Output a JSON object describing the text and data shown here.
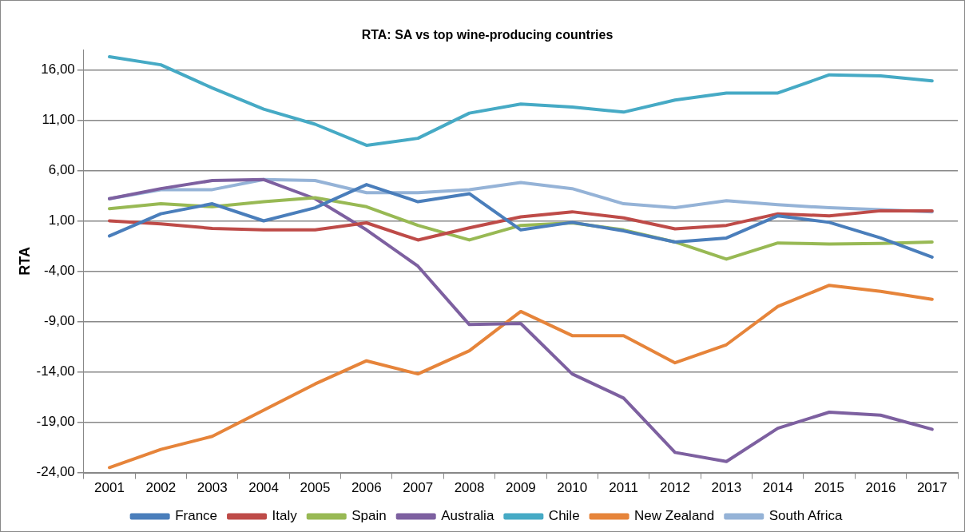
{
  "chart_data": {
    "type": "line",
    "title": "RTA: SA vs top wine-producing countries",
    "ylabel": "RTA",
    "categories": [
      "2001",
      "2002",
      "2003",
      "2004",
      "2005",
      "2006",
      "2007",
      "2008",
      "2009",
      "2010",
      "2011",
      "2012",
      "2013",
      "2014",
      "2015",
      "2016",
      "2017"
    ],
    "series": [
      {
        "name": "France",
        "color": "#4a7ebb",
        "values": [
          -0.5,
          1.7,
          2.7,
          1.0,
          2.3,
          4.6,
          2.9,
          3.7,
          0.1,
          0.85,
          0.0,
          -1.1,
          -0.7,
          1.5,
          0.85,
          -0.7,
          -2.6
        ]
      },
      {
        "name": "Italy",
        "color": "#be4b48",
        "values": [
          1.0,
          0.7,
          0.25,
          0.1,
          0.1,
          0.8,
          -0.9,
          0.3,
          1.4,
          1.9,
          1.3,
          0.2,
          0.55,
          1.7,
          1.5,
          2.0,
          2.0
        ]
      },
      {
        "name": "Spain",
        "color": "#98b954",
        "values": [
          2.2,
          2.7,
          2.4,
          2.9,
          3.3,
          2.4,
          0.55,
          -0.9,
          0.55,
          0.8,
          0.1,
          -1.1,
          -2.8,
          -1.2,
          -1.3,
          -1.25,
          -1.1
        ]
      },
      {
        "name": "Australia",
        "color": "#7d60a0",
        "values": [
          3.2,
          4.2,
          5.0,
          5.1,
          3.2,
          0.1,
          -3.5,
          -9.3,
          -9.2,
          -14.2,
          -16.6,
          -22.0,
          -22.9,
          -19.6,
          -18.0,
          -18.3,
          -19.7
        ]
      },
      {
        "name": "Chile",
        "color": "#46aac5",
        "values": [
          17.3,
          16.5,
          14.2,
          12.1,
          10.6,
          8.5,
          9.2,
          11.7,
          12.6,
          12.3,
          11.8,
          13.0,
          13.7,
          13.7,
          15.5,
          15.4,
          14.9
        ]
      },
      {
        "name": "New Zealand",
        "color": "#e6843a",
        "values": [
          -23.5,
          -21.7,
          -20.4,
          -17.8,
          -15.2,
          -12.9,
          -14.2,
          -11.9,
          -8.0,
          -10.4,
          -10.4,
          -13.1,
          -11.3,
          -7.5,
          -5.4,
          -6.0,
          -6.8
        ]
      },
      {
        "name": "South Africa",
        "color": "#95b3d7",
        "values": [
          3.2,
          4.1,
          4.1,
          5.1,
          5.0,
          3.8,
          3.8,
          4.1,
          4.8,
          4.2,
          2.7,
          2.3,
          3.0,
          2.6,
          2.3,
          2.1,
          1.9
        ]
      }
    ],
    "ylim": [
      -24,
      18
    ],
    "yticks": [
      {
        "value": -24,
        "label": "-24,00"
      },
      {
        "value": -19,
        "label": "-19,00"
      },
      {
        "value": -14,
        "label": "-14,00"
      },
      {
        "value": -9,
        "label": "-9,00"
      },
      {
        "value": -4,
        "label": "-4,00"
      },
      {
        "value": 1,
        "label": "1,00"
      },
      {
        "value": 6,
        "label": "6,00"
      },
      {
        "value": 11,
        "label": "11,00"
      },
      {
        "value": 16,
        "label": "16,00"
      }
    ],
    "grid": "y",
    "legend": "bottom",
    "line_style": "solid",
    "marker": "none"
  }
}
